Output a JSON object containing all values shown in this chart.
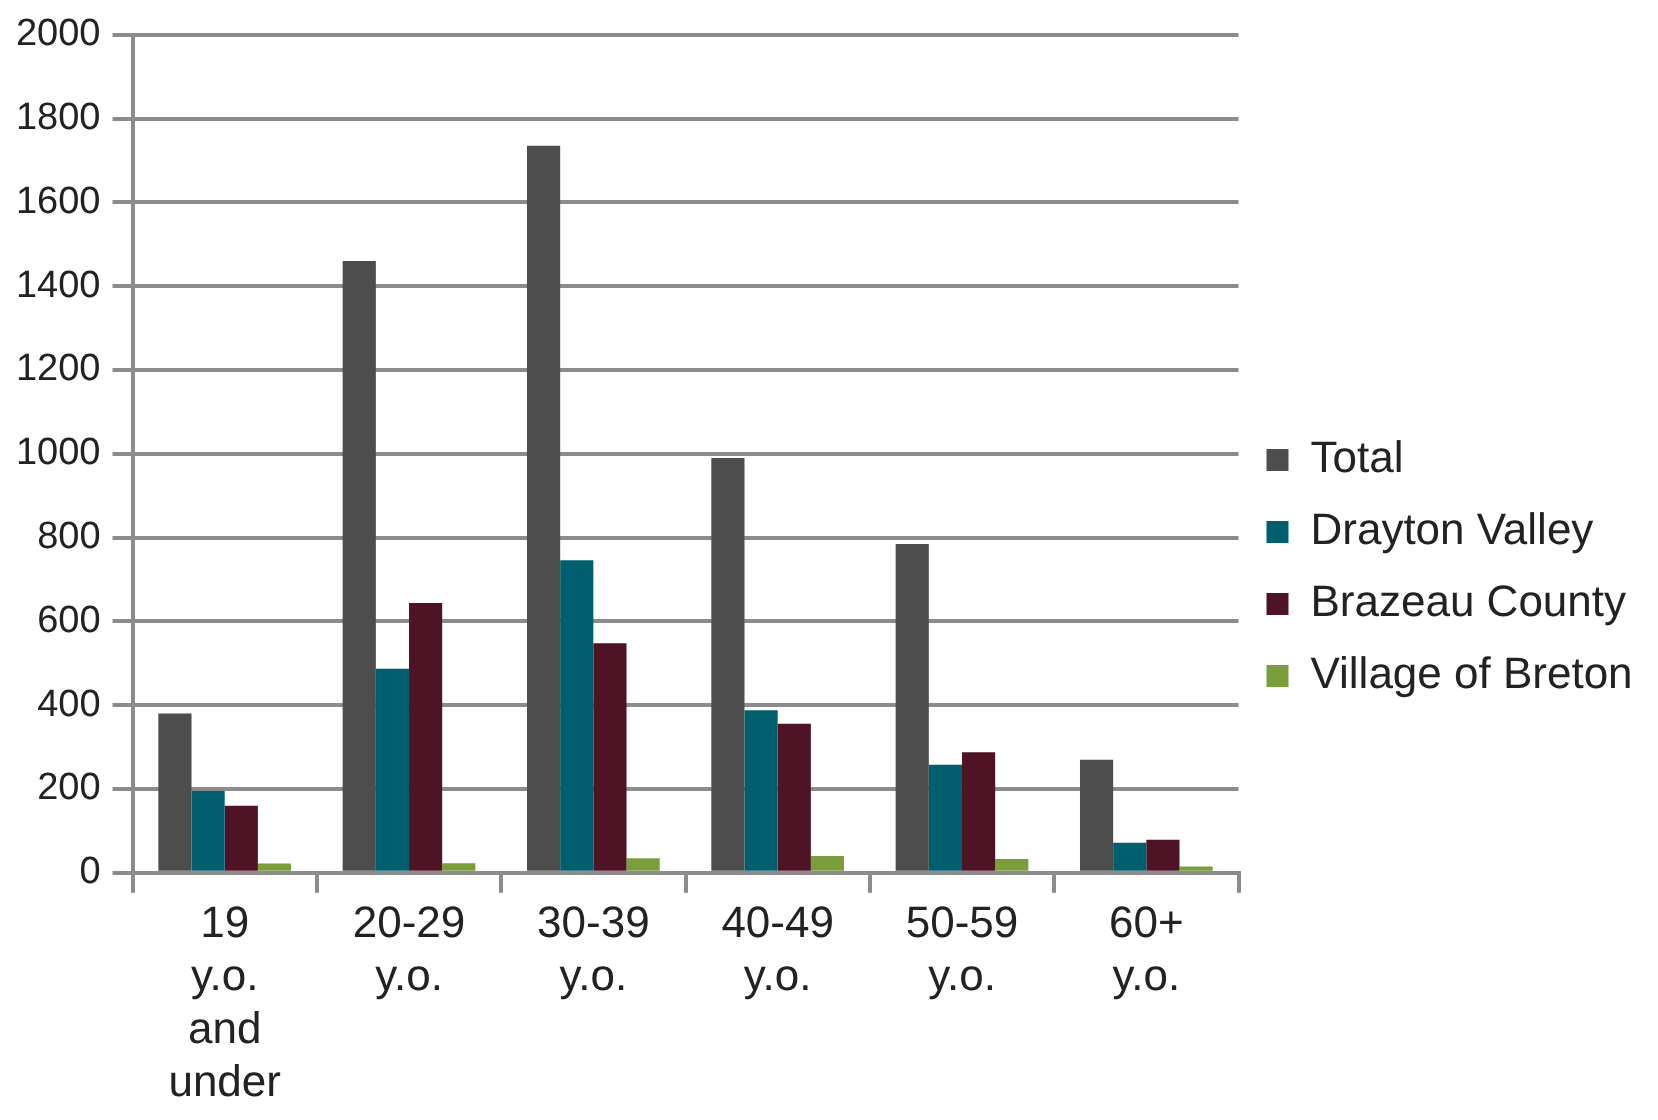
{
  "chart_data": {
    "type": "bar",
    "categories": [
      "19 y.o. and under",
      "20-29 y.o.",
      "30-39 y.o.",
      "40-49 y.o.",
      "50-59 y.o.",
      "60+ y.o."
    ],
    "series": [
      {
        "name": "Total",
        "color": "#4d4d4d",
        "values": [
          380,
          1460,
          1735,
          990,
          785,
          270
        ]
      },
      {
        "name": "Drayton Valley",
        "color": "#005f6e",
        "values": [
          195,
          487,
          746,
          388,
          258,
          72
        ]
      },
      {
        "name": "Brazeau County",
        "color": "#4e1425",
        "values": [
          160,
          644,
          548,
          356,
          288,
          79
        ]
      },
      {
        "name": "Village of Breton",
        "color": "#7a9e3c",
        "values": [
          22,
          23,
          35,
          40,
          33,
          15
        ]
      }
    ],
    "ylim": [
      0,
      2000
    ],
    "yticks": [
      0,
      200,
      400,
      600,
      800,
      1000,
      1200,
      1400,
      1600,
      1800,
      2000
    ],
    "grid": "y",
    "legend": "right"
  }
}
